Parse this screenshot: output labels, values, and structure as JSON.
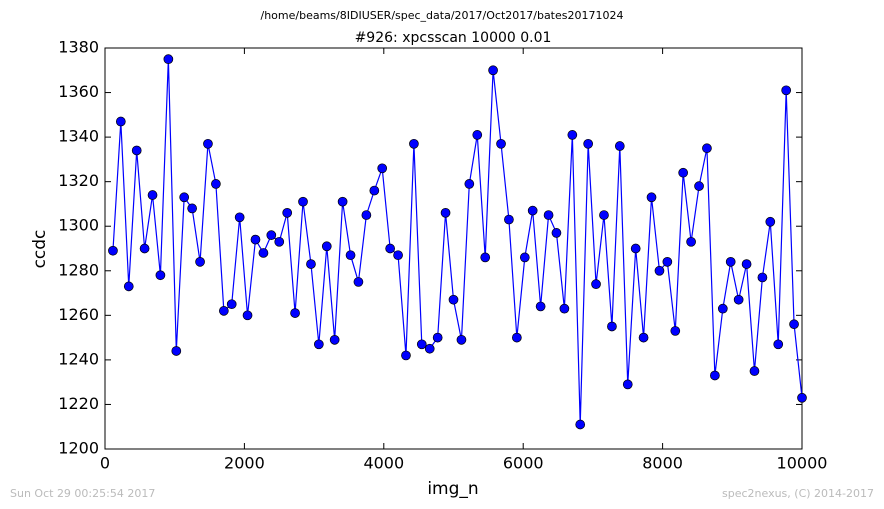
{
  "chart_data": {
    "type": "line",
    "suptitle": "/home/beams/8IDIUSER/spec_data/2017/Oct2017/bates20171024",
    "title": "#926: xpcsscan 10000 0.01",
    "xlabel": "img_n",
    "ylabel": "ccdc",
    "footer_left": "Sun Oct 29 00:25:54 2017",
    "footer_right": "spec2nexus, (C) 2014-2017",
    "x": [
      114,
      227,
      341,
      455,
      568,
      682,
      795,
      909,
      1023,
      1136,
      1250,
      1364,
      1477,
      1591,
      1705,
      1818,
      1932,
      2045,
      2159,
      2273,
      2386,
      2500,
      2614,
      2727,
      2841,
      2955,
      3068,
      3182,
      3295,
      3409,
      3523,
      3636,
      3750,
      3864,
      3977,
      4091,
      4205,
      4318,
      4432,
      4545,
      4659,
      4773,
      4886,
      5000,
      5114,
      5227,
      5341,
      5455,
      5568,
      5682,
      5795,
      5909,
      6023,
      6136,
      6250,
      6364,
      6477,
      6591,
      6705,
      6818,
      6932,
      7045,
      7159,
      7273,
      7386,
      7500,
      7614,
      7727,
      7841,
      7955,
      8068,
      8182,
      8295,
      8409,
      8523,
      8636,
      8750,
      8864,
      8977,
      9091,
      9205,
      9318,
      9432,
      9545,
      9659,
      9773,
      9886,
      10000
    ],
    "series": [
      {
        "name": "ccdc",
        "color": "#0000ff",
        "values": [
          1289,
          1347,
          1273,
          1334,
          1290,
          1314,
          1278,
          1375,
          1244,
          1313,
          1308,
          1284,
          1337,
          1319,
          1262,
          1265,
          1304,
          1260,
          1294,
          1288,
          1296,
          1293,
          1306,
          1261,
          1311,
          1283,
          1247,
          1291,
          1249,
          1311,
          1287,
          1275,
          1305,
          1316,
          1326,
          1290,
          1287,
          1242,
          1337,
          1247,
          1245,
          1250,
          1306,
          1267,
          1249,
          1319,
          1341,
          1286,
          1370,
          1337,
          1303,
          1250,
          1286,
          1307,
          1264,
          1305,
          1297,
          1263,
          1341,
          1211,
          1337,
          1274,
          1305,
          1255,
          1336,
          1229,
          1290,
          1250,
          1313,
          1280,
          1284,
          1253,
          1324,
          1293,
          1318,
          1335,
          1233,
          1263,
          1284,
          1267,
          1283,
          1235,
          1277,
          1302,
          1247,
          1361,
          1256,
          1223
        ]
      }
    ],
    "xlim": [
      0,
      10000
    ],
    "xticks": [
      0,
      2000,
      4000,
      6000,
      8000,
      10000
    ],
    "ylim": [
      1200,
      1380
    ],
    "yticks": [
      1200,
      1220,
      1240,
      1260,
      1280,
      1300,
      1320,
      1340,
      1360,
      1380
    ],
    "grid": false
  }
}
